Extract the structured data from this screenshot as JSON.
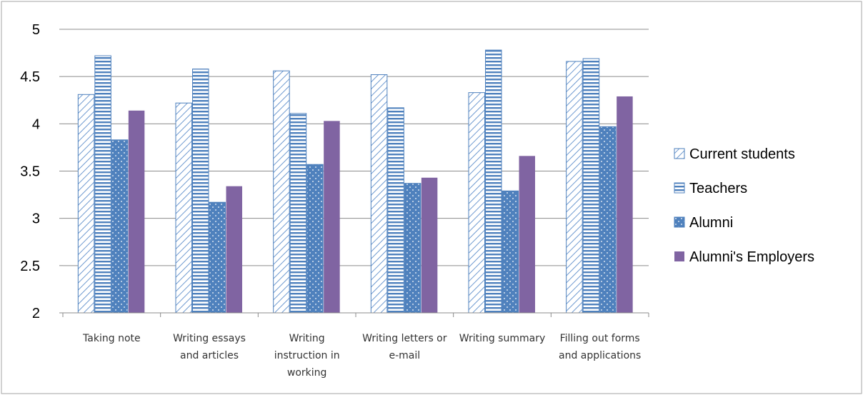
{
  "chart_data": {
    "type": "bar",
    "title": "",
    "xlabel": "",
    "ylabel": "",
    "ylim": [
      2,
      5
    ],
    "yticks": [
      "2",
      "2.5",
      "3",
      "3.5",
      "4",
      "4.5",
      "5"
    ],
    "grid": true,
    "legend_position": "right",
    "categories": [
      [
        "Taking note"
      ],
      [
        "Writing essays",
        "and articles"
      ],
      [
        "Writing",
        "instruction in",
        "working"
      ],
      [
        "Writing letters or",
        "e-mail"
      ],
      [
        "Writing summary"
      ],
      [
        "Filling out forms",
        "and applications"
      ]
    ],
    "series": [
      {
        "name": "Current students",
        "values": [
          4.31,
          4.22,
          4.56,
          4.52,
          4.33,
          4.66
        ],
        "color": "#4f81bd",
        "pattern": "diagonal"
      },
      {
        "name": "Teachers",
        "values": [
          4.72,
          4.58,
          4.11,
          4.17,
          4.78,
          4.69
        ],
        "color": "#4f81bd",
        "pattern": "horizontal"
      },
      {
        "name": "Alumni",
        "values": [
          3.83,
          3.17,
          3.57,
          3.37,
          3.29,
          3.97
        ],
        "color": "#4f81bd",
        "pattern": "dotted"
      },
      {
        "name": "Alumni's Employers",
        "values": [
          4.14,
          3.34,
          4.03,
          3.43,
          3.66,
          4.29
        ],
        "color": "#8064a2",
        "pattern": "solid"
      }
    ]
  }
}
